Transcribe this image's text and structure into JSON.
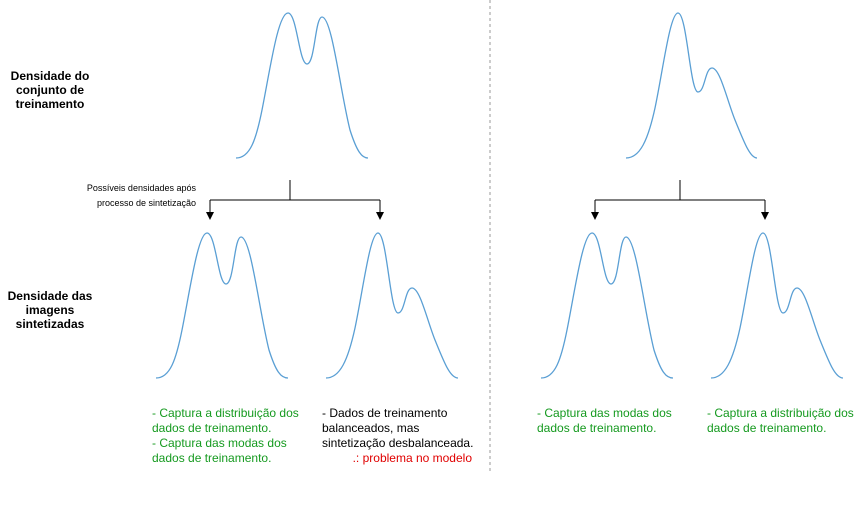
{
  "labels": {
    "training_density": "Densidade do conjunto de treinamento",
    "synth_density": "Densidade das imagens sintetizadas",
    "possible_after": "Possíveis densidades após processo de sintetização"
  },
  "notes": {
    "left_a": [
      "- Captura a distribuição dos\ndados de treinamento.",
      "- Captura das modas dos\ndados de treinamento."
    ],
    "left_b": [
      "- Dados de treinamento\nbalanceados, mas\nsintetização desbalanceada."
    ],
    "left_b_problem": ".: problema no modelo",
    "right_a": [
      "- Captura das modas dos\ndados de treinamento."
    ],
    "right_b": [
      "- Captura a distribuição dos\ndados de treinamento."
    ]
  },
  "colors": {
    "curve": "#5a9fd4",
    "good": "#159a1f",
    "bad": "#e00000",
    "divider": "#999999"
  },
  "icons": [
    "arrow-down-icon"
  ]
}
